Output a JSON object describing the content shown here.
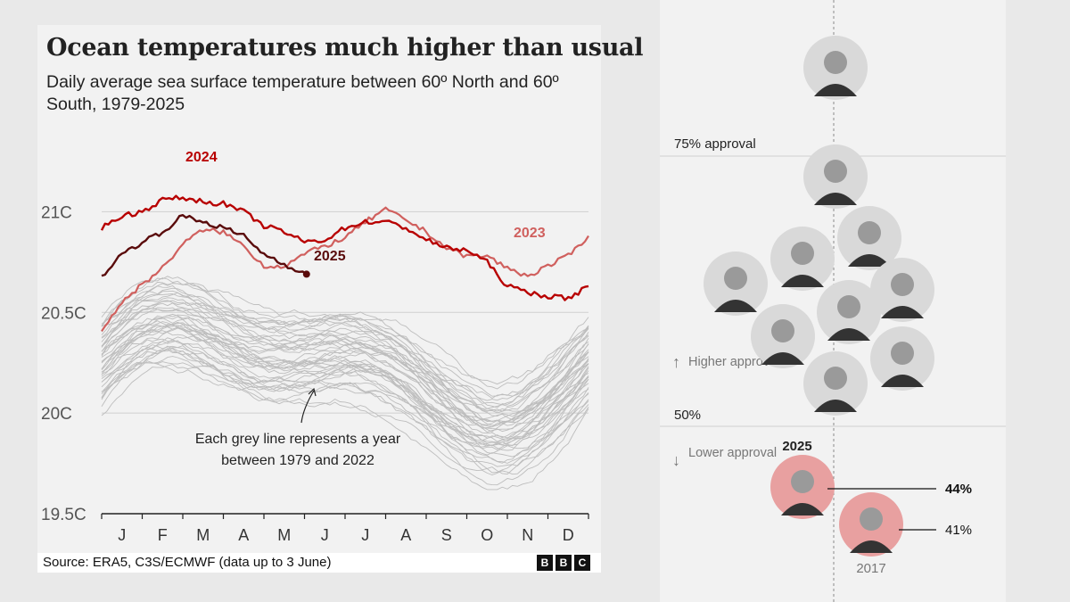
{
  "header": {
    "title": "Ocean temperatures much higher than usual",
    "subtitle": "Daily average sea surface temperature between 60º North and 60º South, 1979-2025"
  },
  "footer": {
    "source": "Source: ERA5, C3S/ECMWF (data up to 3 June)",
    "logo": [
      "B",
      "B",
      "C"
    ]
  },
  "chart_data": {
    "type": "line",
    "title": "Ocean temperatures much higher than usual",
    "subtitle": "Daily average sea surface temperature between 60º North and 60º South, 1979-2025",
    "xlabel": "",
    "ylabel": "",
    "x_ticks": [
      "J",
      "F",
      "M",
      "A",
      "M",
      "J",
      "J",
      "A",
      "S",
      "O",
      "N",
      "D"
    ],
    "y_ticks": [
      {
        "value": 21,
        "label": "21C"
      },
      {
        "value": 20.5,
        "label": "20.5C"
      },
      {
        "value": 20,
        "label": "20C"
      },
      {
        "value": 19.5,
        "label": "19.5C"
      }
    ],
    "ylim": [
      19.5,
      21.25
    ],
    "xlim": [
      0,
      12
    ],
    "colors": {
      "2024": "#b80000",
      "2023": "#d0605e",
      "2025": "#5a0b0b",
      "grey": "#bdbdbd",
      "grid": "#cfcfcf"
    },
    "series": [
      {
        "name": "2024",
        "x": [
          0,
          0.5,
          1,
          1.5,
          2,
          2.5,
          3,
          3.5,
          4,
          4.5,
          5,
          5.5,
          6,
          6.5,
          7,
          7.5,
          8,
          8.5,
          9,
          9.5,
          10,
          10.5,
          11,
          11.5,
          12
        ],
        "values": [
          20.92,
          20.98,
          21.0,
          21.06,
          21.07,
          21.05,
          21.04,
          21.0,
          20.93,
          20.9,
          20.85,
          20.86,
          20.92,
          20.95,
          20.95,
          20.92,
          20.86,
          20.82,
          20.81,
          20.75,
          20.63,
          20.6,
          20.58,
          20.57,
          20.63
        ]
      },
      {
        "name": "2023",
        "x": [
          0,
          0.5,
          1,
          1.5,
          2,
          2.5,
          3,
          3.5,
          4,
          4.5,
          5,
          5.5,
          6,
          6.5,
          7,
          7.5,
          8,
          8.5,
          9,
          9.5,
          10,
          10.5,
          11,
          11.5,
          12
        ],
        "values": [
          20.41,
          20.55,
          20.64,
          20.72,
          20.84,
          20.91,
          20.9,
          20.83,
          20.73,
          20.73,
          20.79,
          20.83,
          20.87,
          20.95,
          21.01,
          20.96,
          20.9,
          20.82,
          20.78,
          20.78,
          20.72,
          20.68,
          20.73,
          20.78,
          20.88
        ]
      },
      {
        "name": "2025",
        "x": [
          0,
          0.5,
          1,
          1.5,
          2,
          2.5,
          3,
          3.5,
          4,
          4.5,
          5.05
        ],
        "values": [
          20.68,
          20.79,
          20.85,
          20.9,
          20.98,
          20.95,
          20.92,
          20.88,
          20.79,
          20.74,
          20.69
        ]
      }
    ],
    "background_years": "1979-2022",
    "annotations": [
      {
        "text": "2024",
        "year": "2024"
      },
      {
        "text": "2023",
        "year": "2023"
      },
      {
        "text": "2025",
        "year": "2025"
      },
      {
        "text": "Each grey line represents a year between 1979 and 2022"
      }
    ]
  },
  "approval_panel": {
    "threshold_high": "75% approval",
    "threshold_mid": "50%",
    "higher_label": "Higher approval",
    "lower_label": "Lower approval",
    "up_arrow": "↑",
    "down_arrow": "↓",
    "current_year": "2025",
    "current_value": "44%",
    "past_year": "2017",
    "past_value": "41%",
    "scale": [
      {
        "label": "75% approval",
        "value": 75
      },
      {
        "label": "50%",
        "value": 50
      }
    ],
    "points": [
      {
        "year": "2025",
        "value": 44,
        "label": "44%"
      },
      {
        "year": "2017",
        "value": 41,
        "label": "41%"
      }
    ]
  }
}
